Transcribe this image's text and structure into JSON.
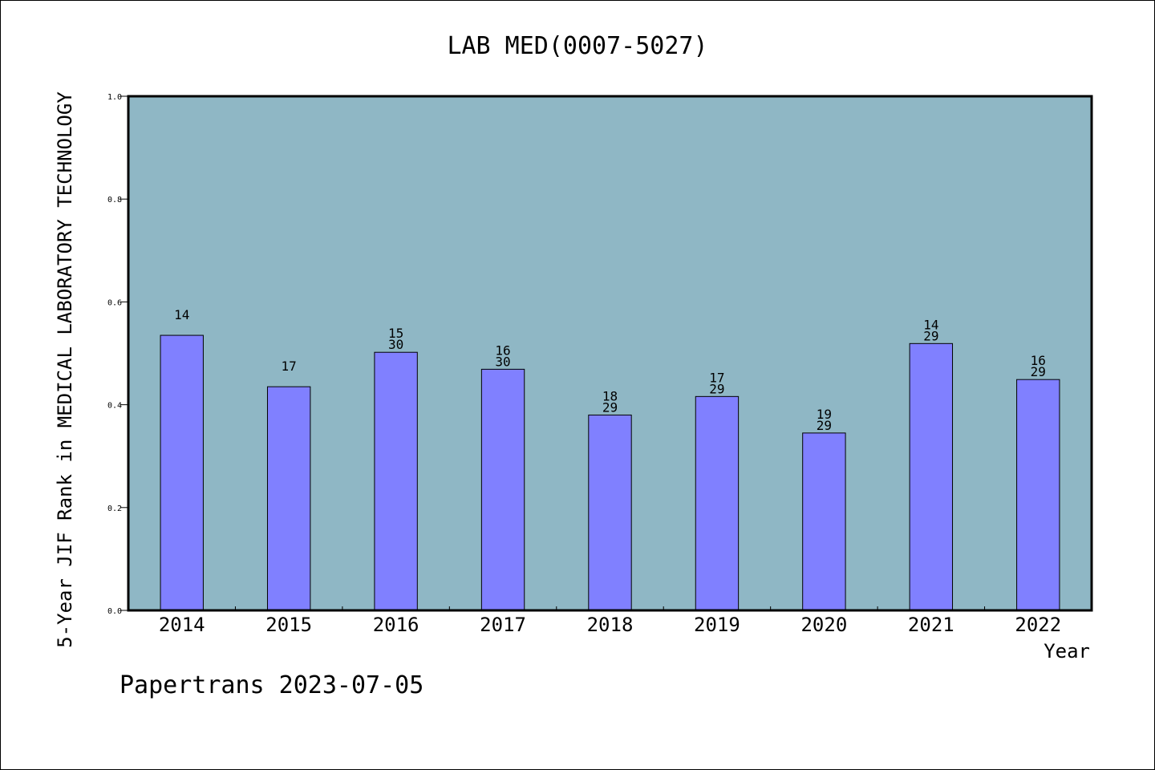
{
  "chart_data": {
    "type": "bar",
    "title": "LAB MED(0007-5027)",
    "xlabel": "Year",
    "ylabel": "5-Year JIF Rank in MEDICAL LABORATORY TECHNOLOGY",
    "ylim": [
      0,
      1.0
    ],
    "yticks": [
      "0.0",
      "0.2",
      "0.4",
      "0.6",
      "0.8",
      "1.0"
    ],
    "categories": [
      "2014",
      "2015",
      "2016",
      "2017",
      "2018",
      "2019",
      "2020",
      "2021",
      "2022"
    ],
    "values": [
      0.535,
      0.435,
      0.502,
      0.469,
      0.38,
      0.416,
      0.345,
      0.519,
      0.449
    ],
    "labels": [
      [
        "14"
      ],
      [
        "17"
      ],
      [
        "15",
        "30"
      ],
      [
        "16",
        "30"
      ],
      [
        "18",
        "29"
      ],
      [
        "17",
        "29"
      ],
      [
        "19",
        "29"
      ],
      [
        "14",
        "29"
      ],
      [
        "16",
        "29"
      ]
    ],
    "colors": {
      "plot_background": "#8fb7c5",
      "bar": "#8080ff"
    },
    "grid": false
  },
  "footer": {
    "text": "Papertrans 2023-07-05"
  }
}
